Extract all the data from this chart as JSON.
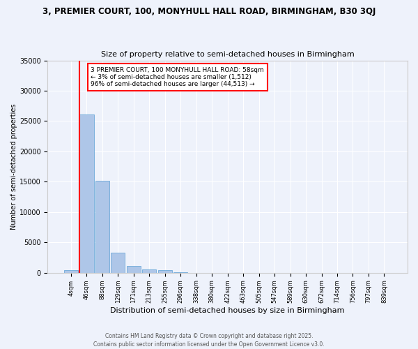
{
  "title": "3, PREMIER COURT, 100, MONYHULL HALL ROAD, BIRMINGHAM, B30 3QJ",
  "subtitle": "Size of property relative to semi-detached houses in Birmingham",
  "xlabel": "Distribution of semi-detached houses by size in Birmingham",
  "ylabel": "Number of semi-detached properties",
  "bar_color": "#aec6e8",
  "bar_edge_color": "#5a9fd4",
  "vline_color": "red",
  "vline_x": 1,
  "annotation_text": "3 PREMIER COURT, 100 MONYHULL HALL ROAD: 58sqm\n← 3% of semi-detached houses are smaller (1,512)\n96% of semi-detached houses are larger (44,513) →",
  "annotation_box_color": "white",
  "annotation_box_edge": "red",
  "categories": [
    "4sqm",
    "46sqm",
    "88sqm",
    "129sqm",
    "171sqm",
    "213sqm",
    "255sqm",
    "296sqm",
    "338sqm",
    "380sqm",
    "422sqm",
    "463sqm",
    "505sqm",
    "547sqm",
    "589sqm",
    "630sqm",
    "672sqm",
    "714sqm",
    "756sqm",
    "797sqm",
    "839sqm"
  ],
  "values": [
    400,
    26100,
    15200,
    3300,
    1100,
    550,
    400,
    130,
    0,
    0,
    0,
    0,
    0,
    0,
    0,
    0,
    0,
    0,
    0,
    0,
    0
  ],
  "ylim": [
    0,
    35000
  ],
  "yticks": [
    0,
    5000,
    10000,
    15000,
    20000,
    25000,
    30000,
    35000
  ],
  "background_color": "#eef2fb",
  "grid_color": "white",
  "footer": "Contains HM Land Registry data © Crown copyright and database right 2025.\nContains public sector information licensed under the Open Government Licence v3.0."
}
